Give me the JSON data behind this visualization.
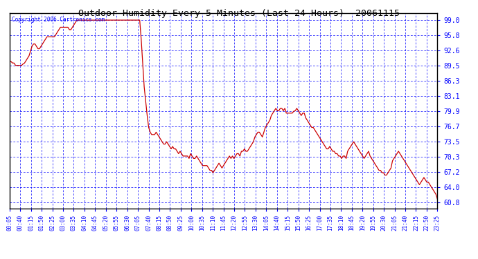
{
  "title": "Outdoor Humidity Every 5 Minutes (Last 24 Hours)  20061115",
  "copyright": "Copyright 2006 Cartronics.com",
  "bg_color": "#ffffff",
  "plot_bg_color": "#ffffff",
  "grid_color": "#0000ff",
  "line_color": "#cc0000",
  "yticks": [
    60.8,
    64.0,
    67.2,
    70.3,
    73.5,
    76.7,
    79.9,
    83.1,
    86.3,
    89.5,
    92.6,
    95.8,
    99.0
  ],
  "ymin": 59.5,
  "ymax": 100.5,
  "xtick_labels": [
    "00:05",
    "00:40",
    "01:15",
    "01:50",
    "02:25",
    "03:00",
    "03:35",
    "04:10",
    "04:45",
    "05:20",
    "05:55",
    "06:30",
    "07:05",
    "07:40",
    "08:15",
    "08:50",
    "09:25",
    "10:00",
    "10:35",
    "11:10",
    "11:45",
    "12:20",
    "12:55",
    "13:30",
    "14:05",
    "14:40",
    "15:15",
    "15:50",
    "16:25",
    "17:00",
    "17:35",
    "18:10",
    "18:45",
    "19:20",
    "19:55",
    "20:30",
    "21:05",
    "21:40",
    "22:15",
    "22:50",
    "23:25"
  ],
  "humidity": [
    90.5,
    90.3,
    90.0,
    90.0,
    89.5,
    89.5,
    89.5,
    89.5,
    89.5,
    89.8,
    90.0,
    90.5,
    91.0,
    91.5,
    92.5,
    93.5,
    94.0,
    94.0,
    93.5,
    93.0,
    93.0,
    93.5,
    94.0,
    94.5,
    95.0,
    95.5,
    95.5,
    95.5,
    95.5,
    95.5,
    95.5,
    96.0,
    96.5,
    97.0,
    97.5,
    97.5,
    97.5,
    97.5,
    97.5,
    97.5,
    97.0,
    97.0,
    97.5,
    98.0,
    98.5,
    99.0,
    99.0,
    99.0,
    99.0,
    99.0,
    99.0,
    99.0,
    99.0,
    99.0,
    99.0,
    99.0,
    99.0,
    99.0,
    99.0,
    99.0,
    99.0,
    99.0,
    99.0,
    99.0,
    99.0,
    99.0,
    99.0,
    99.0,
    99.0,
    99.0,
    99.0,
    99.0,
    99.0,
    99.0,
    99.0,
    99.0,
    99.0,
    99.0,
    99.0,
    99.0,
    99.0,
    99.0,
    99.0,
    99.0,
    99.0,
    99.0,
    99.0,
    99.0,
    95.0,
    90.0,
    85.0,
    82.0,
    79.0,
    76.5,
    75.5,
    75.0,
    75.0,
    75.0,
    75.5,
    75.0,
    74.5,
    74.0,
    73.5,
    73.0,
    73.0,
    73.5,
    73.0,
    72.5,
    72.0,
    72.5,
    72.0,
    72.0,
    71.5,
    71.0,
    71.5,
    71.0,
    70.5,
    70.5,
    70.5,
    70.5,
    70.0,
    71.0,
    70.5,
    70.0,
    70.0,
    70.5,
    70.0,
    69.5,
    69.0,
    68.5,
    68.5,
    68.5,
    68.5,
    68.0,
    67.5,
    67.5,
    67.0,
    67.5,
    68.0,
    68.5,
    69.0,
    68.5,
    68.0,
    68.5,
    69.0,
    69.5,
    70.0,
    70.5,
    70.0,
    70.5,
    70.0,
    70.5,
    71.0,
    71.0,
    70.5,
    71.5,
    71.5,
    72.0,
    71.5,
    71.5,
    72.0,
    72.5,
    73.0,
    73.5,
    74.5,
    75.0,
    75.5,
    75.5,
    75.0,
    74.5,
    75.5,
    76.5,
    77.0,
    77.5,
    78.0,
    79.0,
    79.5,
    80.0,
    80.5,
    80.0,
    80.0,
    80.5,
    80.5,
    80.0,
    80.5,
    79.5,
    79.5,
    79.5,
    79.5,
    79.5,
    79.9,
    80.0,
    80.5,
    80.0,
    79.5,
    79.0,
    79.5,
    79.5,
    78.5,
    78.0,
    77.5,
    77.0,
    76.5,
    76.5,
    76.0,
    75.5,
    75.0,
    74.5,
    74.0,
    73.5,
    73.0,
    72.5,
    72.0,
    72.0,
    72.5,
    72.0,
    71.5,
    71.5,
    71.0,
    71.0,
    70.5,
    70.5,
    70.0,
    70.5,
    70.5,
    70.0,
    71.5,
    72.0,
    72.5,
    73.0,
    73.5,
    73.0,
    72.5,
    72.0,
    71.5,
    71.0,
    70.5,
    70.0,
    70.5,
    71.0,
    71.5,
    70.5,
    70.0,
    69.5,
    69.0,
    68.5,
    68.0,
    67.5,
    67.5,
    67.0,
    67.0,
    66.5,
    66.5,
    67.0,
    67.5,
    68.0,
    69.5,
    70.0,
    70.5,
    71.0,
    71.5,
    71.0,
    70.5,
    70.0,
    69.5,
    69.0,
    68.5,
    68.0,
    67.5,
    67.0,
    66.5,
    66.0,
    65.5,
    65.0,
    64.5,
    65.0,
    65.5,
    66.0,
    65.5,
    65.0,
    65.0,
    64.5,
    64.0,
    63.5,
    63.0,
    62.5,
    61.5
  ]
}
